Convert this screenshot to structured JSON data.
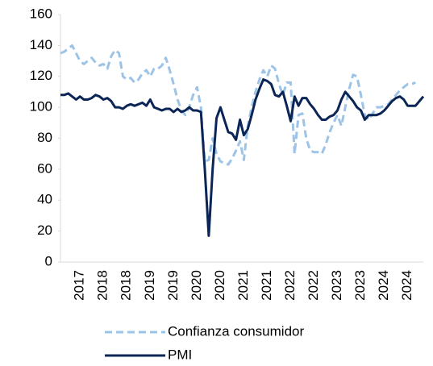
{
  "chart_data": {
    "type": "line",
    "categories": [
      null,
      null,
      null,
      null,
      null,
      "2017",
      null,
      null,
      null,
      null,
      null,
      "2018",
      null,
      null,
      null,
      null,
      null,
      "2018",
      null,
      null,
      null,
      null,
      null,
      "2019",
      null,
      null,
      null,
      null,
      null,
      "2019",
      null,
      null,
      null,
      null,
      null,
      "2020",
      null,
      null,
      null,
      null,
      null,
      "2020",
      null,
      null,
      null,
      null,
      null,
      "2021",
      null,
      null,
      null,
      null,
      null,
      "2021",
      null,
      null,
      null,
      null,
      null,
      "2022",
      null,
      null,
      null,
      null,
      null,
      "2022",
      null,
      null,
      null,
      null,
      null,
      "2023",
      null,
      null,
      null,
      null,
      null,
      "2023",
      null,
      null,
      null,
      null,
      null,
      "2024",
      null,
      null,
      null,
      null,
      null,
      "2024",
      null,
      null,
      null,
      null
    ],
    "series": [
      {
        "name": "Confianza consumidor",
        "color": "#9dc3e6",
        "dashed": true,
        "values": [
          135,
          136,
          138,
          140,
          135,
          130,
          128,
          130,
          132,
          129,
          127,
          128,
          125,
          133,
          137,
          135,
          120,
          118,
          119,
          116,
          118,
          122,
          124,
          120,
          125,
          125,
          127,
          132,
          124,
          115,
          105,
          98,
          95,
          100,
          108,
          113,
          100,
          65,
          66,
          80,
          70,
          65,
          64,
          63,
          67,
          72,
          78,
          66,
          88,
          100,
          110,
          118,
          124,
          120,
          127,
          125,
          115,
          108,
          116,
          116,
          70,
          95,
          96,
          80,
          72,
          71,
          71,
          70,
          76,
          84,
          90,
          95,
          88,
          100,
          112,
          121,
          120,
          108,
          95,
          92,
          96,
          100,
          100,
          101,
          102,
          105,
          108,
          111,
          113,
          115,
          115,
          116,
          null,
          null
        ]
      },
      {
        "name": "PMI",
        "color": "#0b2556",
        "dashed": false,
        "values": [
          108,
          108,
          109,
          107,
          105,
          107,
          105,
          105,
          106,
          108,
          107,
          105,
          106,
          104,
          100,
          100,
          99,
          101,
          102,
          101,
          102,
          103,
          101,
          105,
          100,
          99,
          98,
          99,
          99,
          97,
          99,
          97,
          98,
          100,
          98,
          98,
          97,
          60,
          17,
          60,
          93,
          100,
          92,
          84,
          83,
          79,
          92,
          82,
          86,
          95,
          105,
          112,
          118,
          117,
          115,
          108,
          107,
          110,
          101,
          91,
          107,
          101,
          106,
          106,
          102,
          99,
          95,
          92,
          92,
          94,
          95,
          98,
          105,
          110,
          107,
          104,
          100,
          98,
          92,
          95,
          95,
          95,
          96,
          98,
          101,
          104,
          106,
          107,
          105,
          101,
          101,
          101,
          104,
          107
        ]
      }
    ],
    "ylim": [
      0,
      160
    ],
    "yticks": [
      0,
      20,
      40,
      60,
      80,
      100,
      120,
      140,
      160
    ]
  }
}
